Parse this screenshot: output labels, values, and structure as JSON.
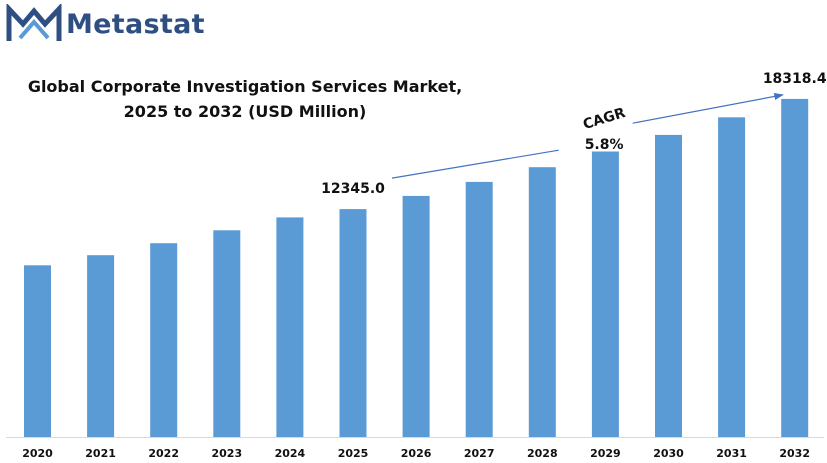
{
  "brand": {
    "name": "Metastat",
    "color": "#2f4f82",
    "accent": "#5b9bd5",
    "logo_icon": "m-logo-icon"
  },
  "chart_data": {
    "type": "bar",
    "title": [
      "Global Corporate Investigation Services Market,",
      "2025 to 2032 (USD Million)"
    ],
    "xlabel": "",
    "ylabel": "",
    "categories": [
      "2020",
      "2021",
      "2022",
      "2023",
      "2024",
      "2025",
      "2026",
      "2027",
      "2028",
      "2029",
      "2030",
      "2031",
      "2032"
    ],
    "values": [
      9300,
      9850,
      10500,
      11200,
      11900,
      12345.0,
      13060,
      13820,
      14620,
      15470,
      16370,
      17320,
      18318.4
    ],
    "ylim": [
      0,
      18800
    ],
    "bar_color": "#5b9bd5",
    "grid": false,
    "legend": "none",
    "data_labels": [
      {
        "category": "2025",
        "text": "12345.0"
      },
      {
        "category": "2032",
        "text": "18318.4"
      }
    ],
    "annotations": {
      "cagr_label": "CAGR",
      "cagr_value": "5.8%",
      "arrow_color": "#4472c4"
    }
  }
}
